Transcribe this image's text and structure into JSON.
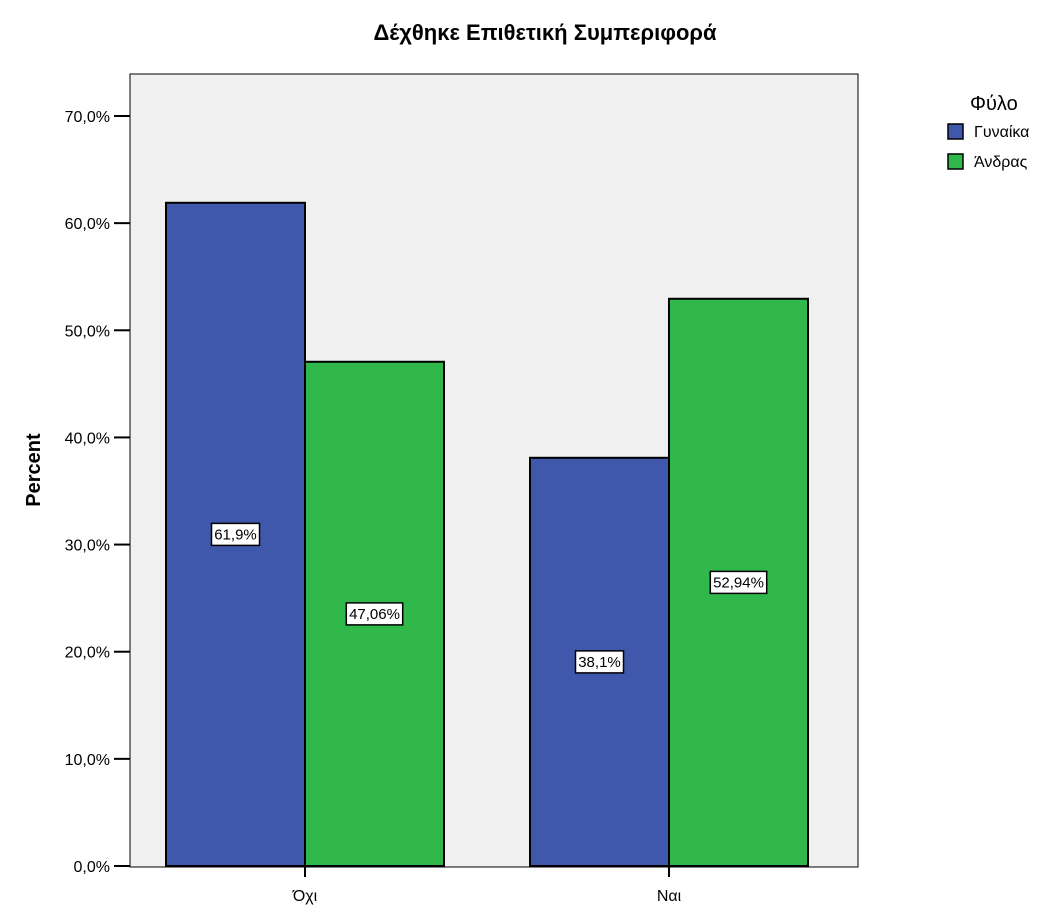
{
  "chart_data": {
    "type": "bar",
    "title": "Δέχθηκε Επιθετική Συμπεριφορά",
    "xlabel": "",
    "ylabel": "Percent",
    "categories": [
      "Όχι",
      "Ναι"
    ],
    "series": [
      {
        "name": "Γυναίκα",
        "values": [
          61.9,
          38.1
        ],
        "labels": [
          "61,9%",
          "38,1%"
        ],
        "color": "#3f58ab"
      },
      {
        "name": "Άνδρας",
        "values": [
          47.06,
          52.94
        ],
        "labels": [
          "47,06%",
          "52,94%"
        ],
        "color": "#30b84a"
      }
    ],
    "ylim": [
      0,
      70
    ],
    "y_ticks": [
      0,
      10,
      20,
      30,
      40,
      50,
      60,
      70
    ],
    "y_tick_labels": [
      "0,0%",
      "10,0%",
      "20,0%",
      "30,0%",
      "40,0%",
      "50,0%",
      "60,0%",
      "70,0%"
    ],
    "legend_title": "Φύλο",
    "legend_position": "top-right",
    "plot_background": "#f0f0f0",
    "grid": false
  }
}
